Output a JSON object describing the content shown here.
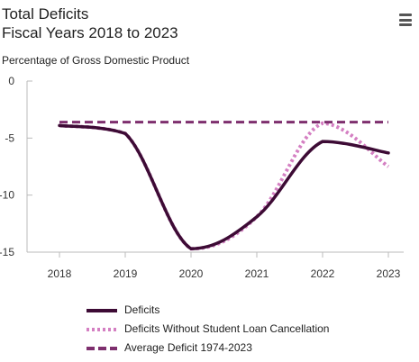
{
  "header": {
    "title_line1": "Total Deficits",
    "title_line2": "Fiscal Years 2018 to 2023",
    "subtitle": "Percentage of Gross Domestic Product"
  },
  "menu": {
    "icon": "hamburger-menu-icon"
  },
  "colors": {
    "deficits": "#3d0b35",
    "without_cancellation": "#d47fc2",
    "average": "#7e2f6e",
    "axis": "#bbbbbb"
  },
  "chart_data": {
    "type": "line",
    "title": "Total Deficits Fiscal Years 2018 to 2023",
    "ylabel": "Percentage of Gross Domestic Product",
    "x": [
      2018,
      2019,
      2020,
      2021,
      2022,
      2023
    ],
    "x_tick_labels": [
      "2018",
      "2019",
      "2020",
      "2021",
      "2022",
      "2023"
    ],
    "y_tick_labels": [
      "0",
      "-5",
      "-10",
      "-15"
    ],
    "y_ticks": [
      0,
      -5,
      -10,
      -15
    ],
    "ylim": [
      -15,
      0
    ],
    "grid": false,
    "legend_position": "bottom",
    "series": [
      {
        "name": "Deficits",
        "values": [
          -3.9,
          -4.6,
          -14.7,
          -11.9,
          -5.3,
          -6.3
        ],
        "style": "solid"
      },
      {
        "name": "Deficits Without Student Loan Cancellation",
        "values": [
          -3.9,
          -4.6,
          -14.7,
          -11.9,
          -3.7,
          -7.5
        ],
        "style": "dotted"
      },
      {
        "name": "Average Deficit 1974-2023",
        "values": [
          -3.6,
          -3.6,
          -3.6,
          -3.6,
          -3.6,
          -3.6
        ],
        "style": "dashed"
      }
    ]
  }
}
